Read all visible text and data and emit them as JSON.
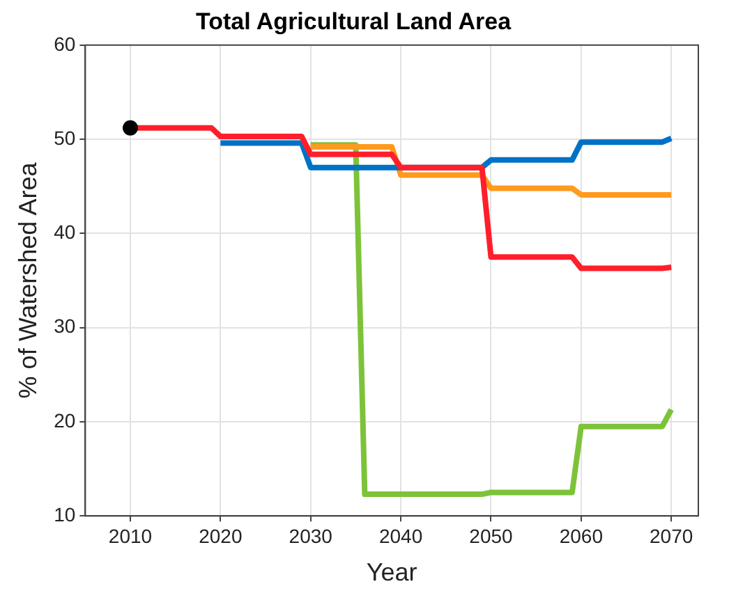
{
  "chart_data": {
    "type": "line",
    "title": "Total Agricultural Land Area",
    "xlabel": "Year",
    "ylabel": "% of Watershed Area",
    "xlim": [
      2005,
      2073
    ],
    "xticks": [
      2010,
      2020,
      2030,
      2040,
      2050,
      2060,
      2070
    ],
    "ylim": [
      10,
      60
    ],
    "yticks": [
      10,
      20,
      30,
      40,
      50,
      60
    ],
    "grid": true,
    "legend": false,
    "marker": "none",
    "line_style": "solid",
    "series": [
      {
        "color": "#7dc33a",
        "x": [
          2030,
          2035,
          2036,
          2049,
          2050,
          2059,
          2060,
          2069,
          2070
        ],
        "values": [
          49.4,
          49.4,
          12.3,
          12.3,
          12.5,
          12.5,
          19.5,
          19.5,
          21.3
        ]
      },
      {
        "color": "#ff9a1e",
        "x": [
          2030,
          2039,
          2040,
          2049,
          2050,
          2059,
          2060,
          2069,
          2070
        ],
        "values": [
          49.2,
          49.2,
          46.2,
          46.2,
          44.8,
          44.8,
          44.1,
          44.1,
          44.1
        ]
      },
      {
        "color": "#0072c6",
        "x": [
          2020,
          2029,
          2030,
          2039,
          2040,
          2049,
          2050,
          2059,
          2060,
          2069,
          2070
        ],
        "values": [
          49.6,
          49.6,
          47,
          47,
          47,
          47,
          47.8,
          47.8,
          49.7,
          49.7,
          50.1
        ]
      },
      {
        "color": "#ff1f2a",
        "x": [
          2010,
          2019,
          2020,
          2029,
          2030,
          2039,
          2040,
          2049,
          2050,
          2059,
          2060,
          2069,
          2070
        ],
        "values": [
          51.2,
          51.2,
          50.3,
          50.3,
          48.4,
          48.4,
          47,
          47,
          37.5,
          37.5,
          36.3,
          36.3,
          36.4
        ]
      },
      {
        "type": "scatter",
        "color": "#000000",
        "marker": "circle",
        "x": [
          2010
        ],
        "values": [
          51.2
        ]
      }
    ]
  }
}
